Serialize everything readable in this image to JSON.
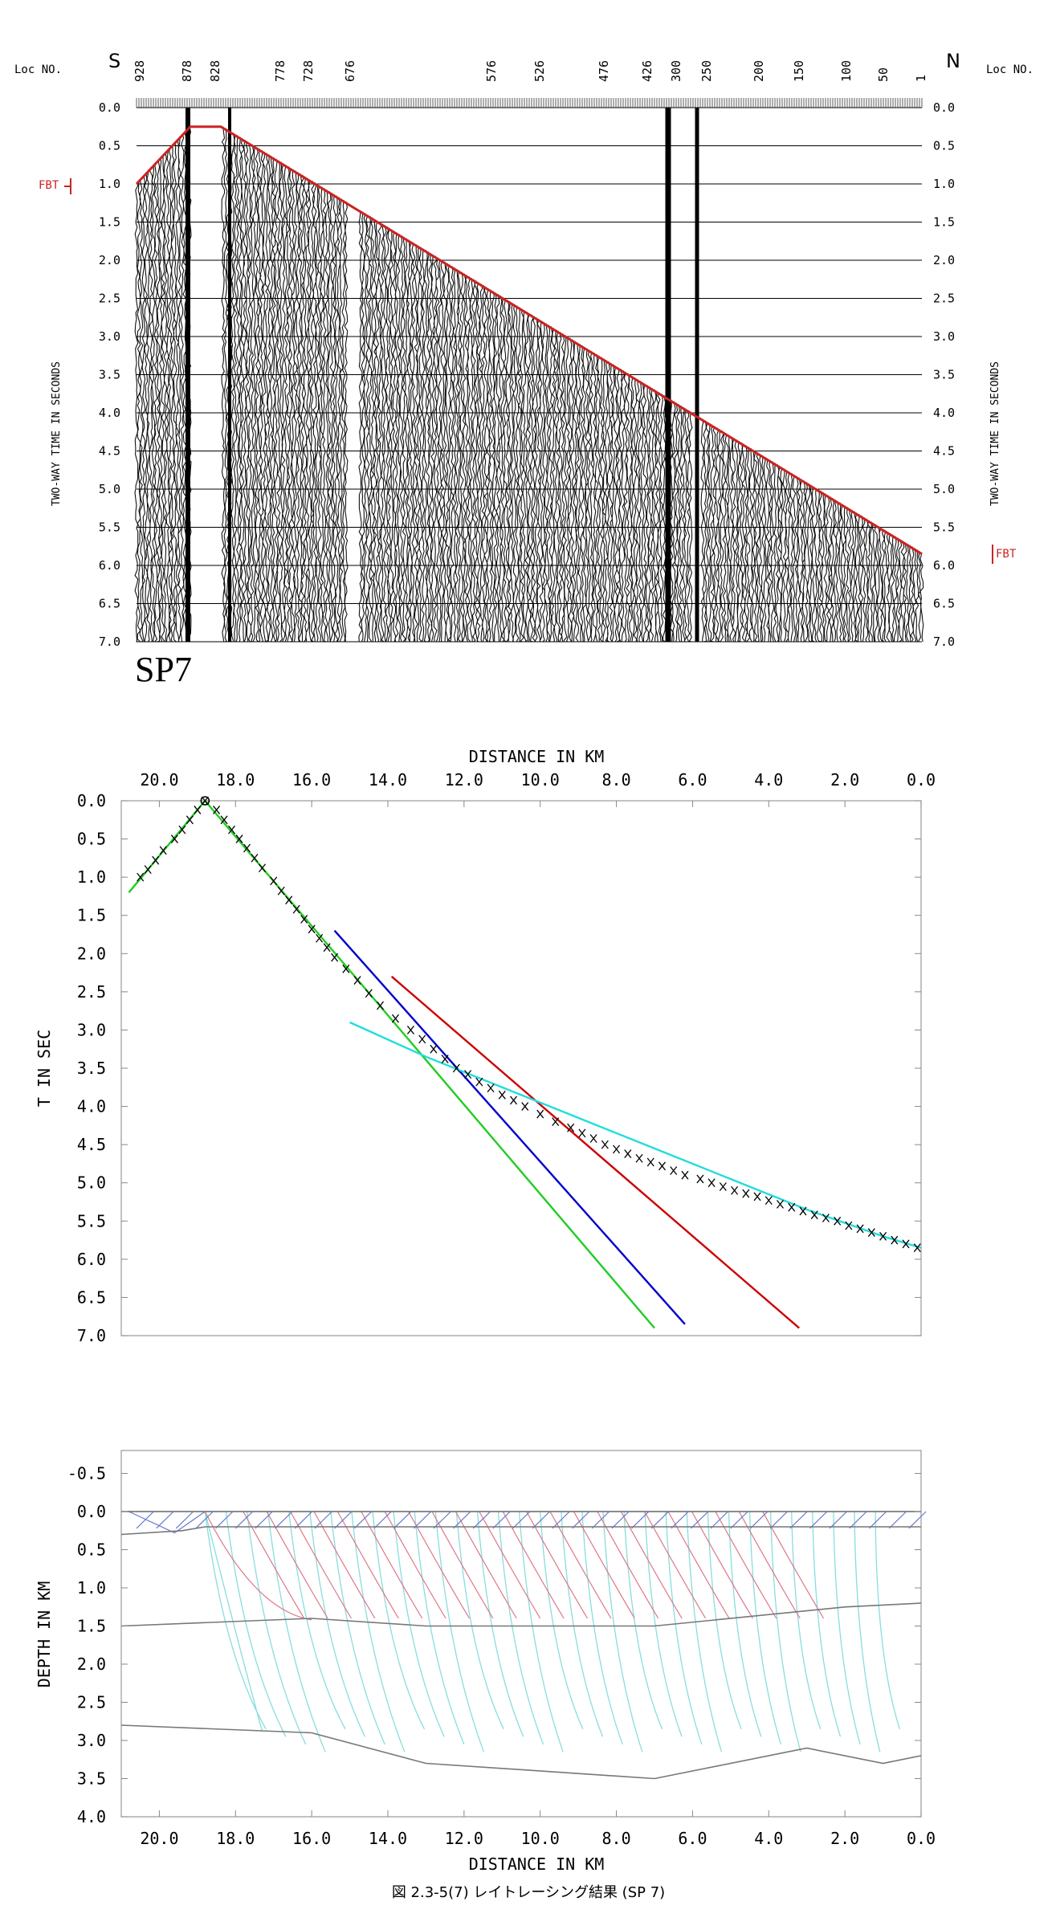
{
  "figure_caption": "図 2.3-5(7) レイトレーシング結果 (SP 7)",
  "chart_data": [
    {
      "type": "heatmap",
      "panel": "seismic record section",
      "shot_label": "SP7",
      "left_direction": "S",
      "right_direction": "N",
      "loc_label_left": "Loc NO.",
      "loc_label_right": "Loc NO.",
      "loc_ticks": [
        "928",
        "878",
        "828",
        "778",
        "728",
        "676",
        "576",
        "526",
        "476",
        "426",
        "300",
        "250",
        "200",
        "150",
        "100",
        "50",
        "1"
      ],
      "ylabel_left": "TWO-WAY TIME IN SECONDS",
      "ylabel_right": "TWO-WAY TIME IN SECONDS",
      "y_ticks": [
        "0.0",
        "0.5",
        "1.0",
        "1.5",
        "2.0",
        "2.5",
        "3.0",
        "3.5",
        "4.0",
        "4.5",
        "5.0",
        "5.5",
        "6.0",
        "6.5",
        "7.0"
      ],
      "ylim": [
        0,
        7
      ],
      "fbt_label": "FBT",
      "fbt_left_time": 1.0,
      "fbt_right_time": 5.85,
      "fbt_color": "#cc2222"
    },
    {
      "type": "line",
      "panel": "travel-time curves",
      "title": "DISTANCE IN KM",
      "ylabel": "T IN SEC",
      "x_ticks": [
        "20.0",
        "18.0",
        "16.0",
        "14.0",
        "12.0",
        "10.0",
        "8.0",
        "6.0",
        "4.0",
        "2.0",
        "0.0"
      ],
      "y_ticks": [
        "0.0",
        "0.5",
        "1.0",
        "1.5",
        "2.0",
        "2.5",
        "3.0",
        "3.5",
        "4.0",
        "4.5",
        "5.0",
        "5.5",
        "6.0",
        "6.5",
        "7.0"
      ],
      "xlim": [
        21,
        0
      ],
      "ylim": [
        0,
        7
      ],
      "source_x": 18.8,
      "series": [
        {
          "color": "#22cc22",
          "x": [
            20.8,
            18.8
          ],
          "y": [
            1.2,
            0.0
          ]
        },
        {
          "color": "#22cc22",
          "x": [
            18.8,
            7.0
          ],
          "y": [
            0.0,
            6.9
          ]
        },
        {
          "color": "#0000cc",
          "x": [
            15.4,
            6.2
          ],
          "y": [
            1.7,
            6.85
          ]
        },
        {
          "color": "#cc0000",
          "x": [
            13.9,
            3.2
          ],
          "y": [
            2.3,
            6.9
          ]
        },
        {
          "color": "#22dddd",
          "x": [
            15.0,
            13.0,
            11.0,
            9.0,
            7.0,
            5.0,
            3.0,
            1.0,
            0.0
          ],
          "y": [
            2.9,
            3.35,
            3.75,
            4.15,
            4.55,
            4.95,
            5.35,
            5.7,
            5.85
          ]
        }
      ],
      "picks": {
        "x": [
          20.5,
          20.3,
          20.1,
          19.9,
          19.6,
          19.4,
          19.2,
          19.0,
          18.8,
          18.5,
          18.3,
          18.1,
          17.9,
          17.7,
          17.5,
          17.3,
          17.0,
          16.8,
          16.6,
          16.4,
          16.2,
          16.0,
          15.8,
          15.6,
          15.4,
          15.1,
          14.8,
          14.5,
          14.2,
          13.8,
          13.4,
          13.1,
          12.8,
          12.5,
          12.2,
          11.9,
          11.6,
          11.3,
          11.0,
          10.7,
          10.4,
          10.0,
          9.6,
          9.2,
          8.9,
          8.6,
          8.3,
          8.0,
          7.7,
          7.4,
          7.1,
          6.8,
          6.5,
          6.2,
          5.8,
          5.5,
          5.2,
          4.9,
          4.6,
          4.3,
          4.0,
          3.7,
          3.4,
          3.1,
          2.8,
          2.5,
          2.2,
          1.9,
          1.6,
          1.3,
          1.0,
          0.7,
          0.4,
          0.1
        ],
        "y": [
          1.0,
          0.9,
          0.78,
          0.65,
          0.5,
          0.38,
          0.25,
          0.12,
          0.0,
          0.12,
          0.25,
          0.38,
          0.5,
          0.62,
          0.75,
          0.88,
          1.05,
          1.18,
          1.3,
          1.42,
          1.55,
          1.68,
          1.8,
          1.92,
          2.05,
          2.2,
          2.35,
          2.52,
          2.68,
          2.85,
          3.0,
          3.12,
          3.25,
          3.38,
          3.5,
          3.58,
          3.68,
          3.76,
          3.85,
          3.92,
          4.0,
          4.1,
          4.2,
          4.28,
          4.35,
          4.42,
          4.5,
          4.56,
          4.62,
          4.68,
          4.73,
          4.78,
          4.84,
          4.9,
          4.95,
          5.0,
          5.05,
          5.1,
          5.14,
          5.18,
          5.23,
          5.28,
          5.32,
          5.37,
          5.42,
          5.46,
          5.5,
          5.56,
          5.6,
          5.65,
          5.7,
          5.75,
          5.8,
          5.85
        ]
      }
    },
    {
      "type": "line",
      "panel": "ray-tracing depth model",
      "xlabel": "DISTANCE IN KM",
      "ylabel": "DEPTH IN KM",
      "x_ticks": [
        "20.0",
        "18.0",
        "16.0",
        "14.0",
        "12.0",
        "10.0",
        "8.0",
        "6.0",
        "4.0",
        "2.0",
        "0.0"
      ],
      "y_ticks": [
        "-0.5",
        "0.0",
        "0.5",
        "1.0",
        "1.5",
        "2.0",
        "2.5",
        "3.0",
        "3.5",
        "4.0"
      ],
      "xlim": [
        21,
        0
      ],
      "ylim": [
        -0.8,
        4.0
      ],
      "interfaces": [
        {
          "x": [
            21,
            19.4,
            18.8,
            0
          ],
          "y": [
            0.3,
            0.25,
            0.2,
            0.2
          ]
        },
        {
          "x": [
            21,
            16.0,
            13.0,
            10.0,
            7.0,
            2.0,
            0.0
          ],
          "y": [
            1.5,
            1.4,
            1.5,
            1.5,
            1.5,
            1.25,
            1.2
          ]
        },
        {
          "x": [
            21,
            16.0,
            13.0,
            7.0,
            3.0,
            1.0,
            0.0
          ],
          "y": [
            2.8,
            2.9,
            3.3,
            3.5,
            3.1,
            3.3,
            3.2
          ]
        }
      ],
      "ray_colors": {
        "layer1": "#6677cc",
        "layer2": "#dd7788",
        "layer3": "#88dddd"
      }
    }
  ]
}
